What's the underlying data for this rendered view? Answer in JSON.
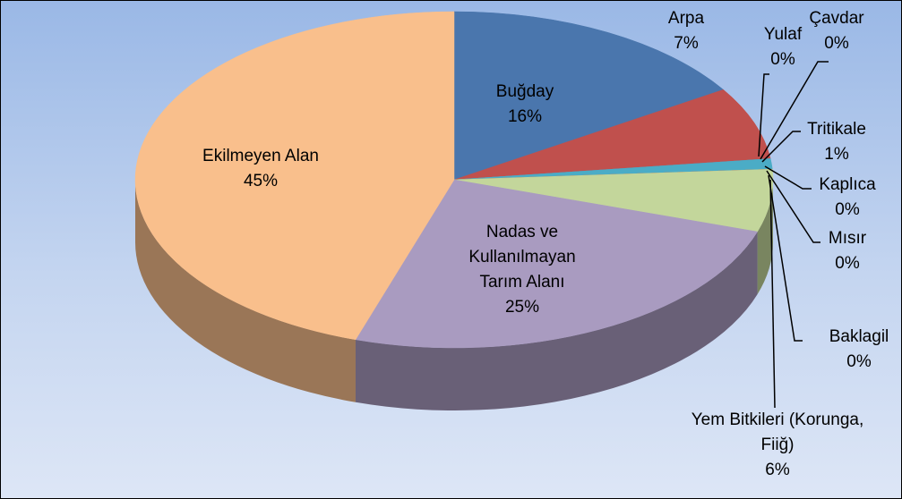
{
  "chart_data": {
    "type": "pie3d",
    "categories": [
      "Buğday",
      "Arpa",
      "Yulaf",
      "Çavdar",
      "Tritikale",
      "Kaplıca",
      "Mısır",
      "Baklagil",
      "Yem Bitkileri (Korunga, Fiiğ)",
      "Nadas ve Kullanılmayan Tarım Alanı",
      "Ekilmeyen Alan"
    ],
    "values": [
      16,
      7,
      0,
      0,
      1,
      0,
      0,
      0,
      6,
      25,
      45
    ],
    "value_labels": [
      "16%",
      "7%",
      "0%",
      "0%",
      "1%",
      "0%",
      "0%",
      "0%",
      "6%",
      "25%",
      "45%"
    ],
    "colors": [
      "#4a76ad",
      "#c0504d",
      "#9bbb59",
      "#8064a2",
      "#4bacc6",
      "#a5a5a5",
      "#f79646",
      "#7f7f7f",
      "#c3d69b",
      "#a99bc0",
      "#f9bf8c"
    ]
  }
}
